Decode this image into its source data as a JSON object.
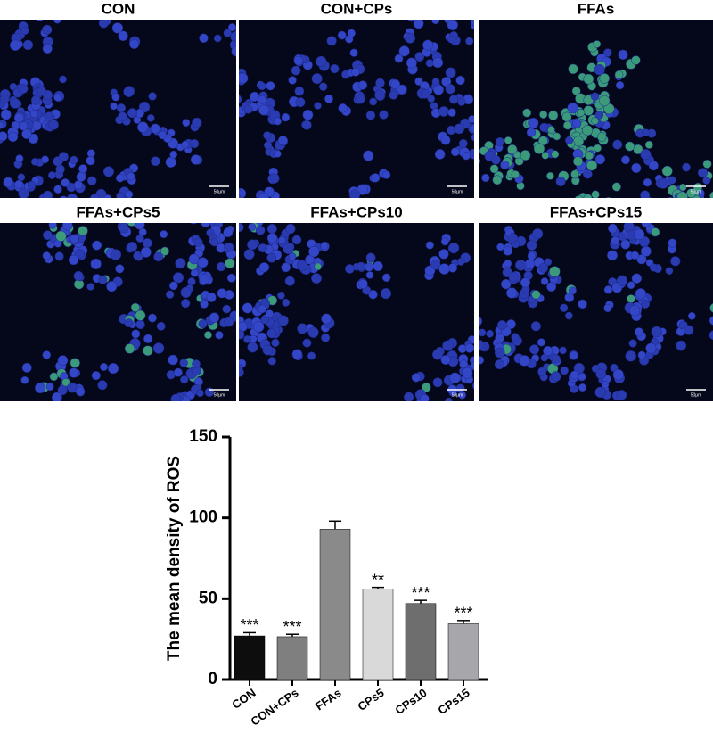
{
  "panels": [
    {
      "title": "CON",
      "scale_label": "50μm"
    },
    {
      "title": "CON+CPs",
      "scale_label": "50μm"
    },
    {
      "title": "FFAs",
      "scale_label": "50μm"
    },
    {
      "title": "FFAs+CPs5",
      "scale_label": "50μm"
    },
    {
      "title": "FFAs+CPs10",
      "scale_label": "50μm"
    },
    {
      "title": "FFAs+CPs15",
      "scale_label": "50μm"
    }
  ],
  "chart_data": {
    "type": "bar",
    "ylabel": "The mean density of ROS",
    "categories": [
      "CON",
      "CON+CPs",
      "FFAs",
      "CPs5",
      "CPs10",
      "CPs15"
    ],
    "values": [
      27,
      26.5,
      93,
      56,
      47,
      34.5
    ],
    "errors": [
      2,
      1.5,
      5,
      1,
      2,
      2
    ],
    "colors": [
      "#0d0d0d",
      "#7f7f7f",
      "#8a8a8a",
      "#d9d9d9",
      "#6e6e6e",
      "#a7a7ab"
    ],
    "annotations": [
      "***",
      "***",
      null,
      "**",
      "***",
      "***"
    ],
    "ylim": [
      0,
      150
    ],
    "yticks": [
      0,
      50,
      100,
      150
    ]
  }
}
